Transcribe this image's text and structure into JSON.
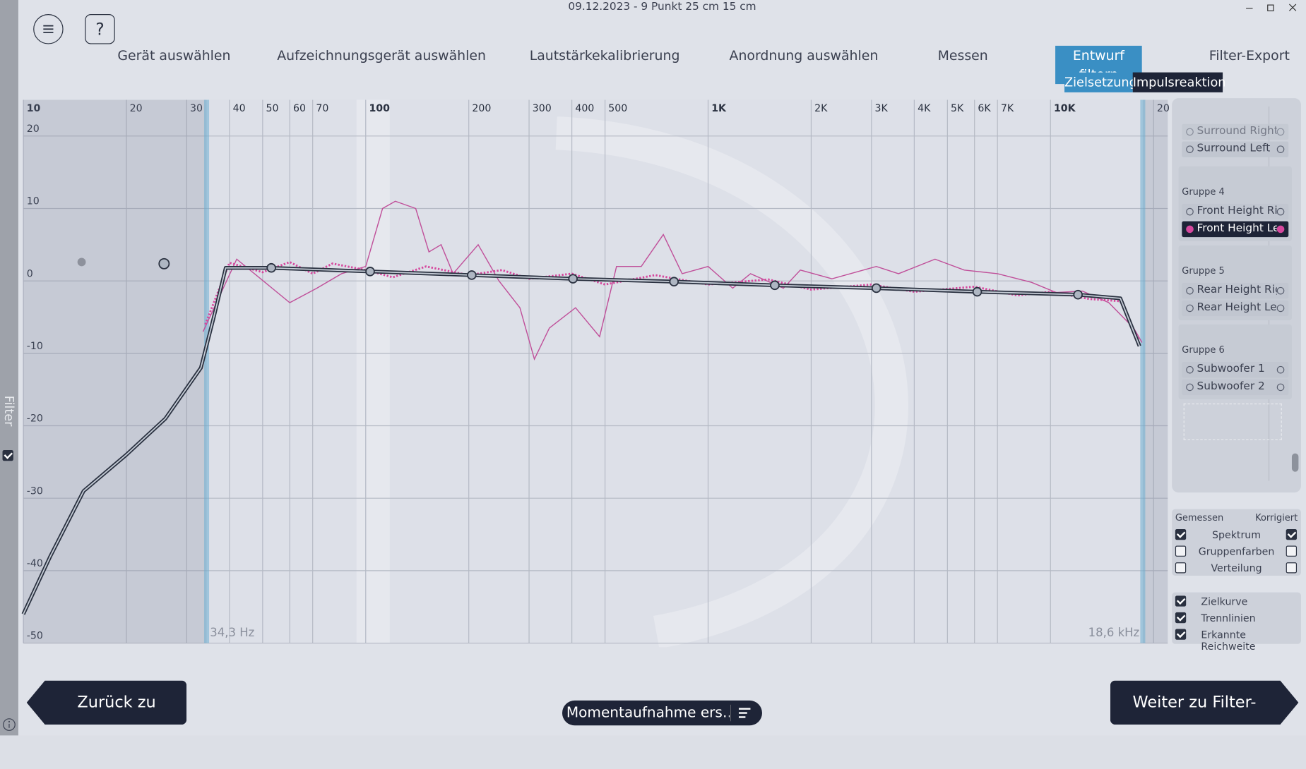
{
  "header": {
    "title": "09.12.2023 - 9 Punkt 25 cm 15 cm",
    "help": "?"
  },
  "steps": {
    "labels": [
      "Gerät auswählen",
      "Aufzeichnungsgerät auswählen",
      "Lautstärkekalibrierung",
      "Anordnung auswählen",
      "Messen",
      "Entwurf filtern",
      "Filter-Export"
    ],
    "active": 5
  },
  "tabs": [
    "Zielsetzung",
    "Impulsreaktion"
  ],
  "side": {
    "label": "Filter",
    "checked": true
  },
  "chart_data": {
    "type": "line",
    "xscale": "log",
    "xlim": [
      10,
      22000
    ],
    "ylim": [
      -50,
      25
    ],
    "grid": true,
    "xticks": [
      10,
      20,
      30,
      40,
      50,
      60,
      70,
      100,
      200,
      300,
      400,
      500,
      {
        "value": 1000,
        "label": "1K"
      },
      {
        "value": 2000,
        "label": "2K"
      },
      {
        "value": 3000,
        "label": "3K"
      },
      {
        "value": 4000,
        "label": "4K"
      },
      {
        "value": 5000,
        "label": "5K"
      },
      {
        "value": 6000,
        "label": "6K"
      },
      {
        "value": 7000,
        "label": "7K"
      },
      {
        "value": 10000,
        "label": "10K"
      },
      {
        "value": 20000,
        "label": "20"
      }
    ],
    "yticks": [
      20,
      10,
      0,
      -10,
      -20,
      -30,
      -40,
      -50
    ],
    "range": [
      {
        "value": 34.3,
        "label": "34,3 Hz"
      },
      {
        "value": 18600,
        "label": "18,6 kHz"
      }
    ],
    "series": [
      {
        "color": "#c0509a",
        "style": "solid",
        "x": [
          33.5,
          42,
          60,
          72,
          85,
          100,
          112,
          122,
          140,
          153,
          166,
          180,
          213,
          245,
          282,
          311,
          344,
          410,
          482,
          540,
          638,
          740,
          840,
          1000,
          1180,
          1330,
          1660,
          1860,
          2300,
          3100,
          3600,
          4600,
          5600,
          7000,
          8800,
          10400,
          12400,
          14800,
          17500,
          18500
        ],
        "values": [
          -7,
          3,
          -3,
          -1,
          1,
          2,
          10,
          11,
          10,
          4,
          5,
          1,
          5,
          0,
          -3.7,
          -10.8,
          -6.5,
          -3.7,
          -7.7,
          2,
          2,
          6.4,
          1,
          2,
          -1,
          1,
          -1,
          1.5,
          0.3,
          2,
          1,
          3,
          1.5,
          1,
          -0.2,
          -1.6,
          -1.4,
          -3,
          -6.5,
          -8.5
        ]
      },
      {
        "color": "#d6489e",
        "style": "dotted",
        "x": [
          34,
          40,
          50,
          60,
          70,
          80,
          100,
          120,
          150,
          200,
          250,
          300,
          400,
          500,
          700,
          1000,
          1500,
          2000,
          3000,
          4000,
          6000,
          8000,
          10000,
          13000,
          16000,
          18000
        ],
        "values": [
          -6,
          2.5,
          1.2,
          2.6,
          1.0,
          2.4,
          1.5,
          0.5,
          2.0,
          0.8,
          1.5,
          0.3,
          1.0,
          -0.5,
          0.8,
          -0.5,
          0.2,
          -1.2,
          -0.5,
          -1.5,
          -0.8,
          -2.0,
          -1.5,
          -2.5,
          -2.8,
          -8
        ]
      },
      {
        "color": "#2a3140",
        "style": "target",
        "x": [
          10,
          12,
          15,
          20,
          26,
          33,
          36,
          39,
          53,
          103,
          204,
          403,
          795,
          1566,
          3100,
          6110,
          12030,
          16000,
          18200
        ],
        "values": [
          -46,
          -38,
          -29,
          -24,
          -19,
          -12,
          -5,
          1.8,
          1.8,
          1.3,
          0.8,
          0.3,
          -0.1,
          -0.6,
          -1,
          -1.5,
          -1.9,
          -2.4,
          -9
        ]
      }
    ],
    "control_points": {
      "color": "#aeb6c2",
      "x": [
        53,
        103,
        204,
        403,
        795,
        1566,
        3100,
        6110,
        12030
      ],
      "values": [
        1.8,
        1.3,
        0.8,
        0.3,
        -0.1,
        -0.6,
        -1,
        -1.5,
        -1.9
      ]
    }
  },
  "sidebar": {
    "top_items": [
      "Surround Right",
      "Surround Left"
    ],
    "groups": [
      {
        "name": "Gruppe 4",
        "items": [
          "Front Height Ri…",
          "Front Height Left"
        ],
        "selected": 1
      },
      {
        "name": "Gruppe 5",
        "items": [
          "Rear Height Right",
          "Rear Height Left"
        ],
        "selected": -1
      },
      {
        "name": "Gruppe 6",
        "items": [
          "Subwoofer 1",
          "Subwoofer 2"
        ],
        "selected": -1
      }
    ]
  },
  "options": {
    "headers": [
      "Gemessen",
      "Korrigiert"
    ],
    "rows": [
      {
        "label": "Spektrum",
        "measured": true,
        "corrected": true
      },
      {
        "label": "Gruppenfarben",
        "measured": false,
        "corrected": false
      },
      {
        "label": "Verteilung",
        "measured": false,
        "corrected": false
      }
    ],
    "display": [
      {
        "label": "Zielkurve",
        "checked": true
      },
      {
        "label": "Trennlinien",
        "checked": true
      },
      {
        "label": "Erkannte Reichweite",
        "checked": true
      }
    ]
  },
  "buttons": {
    "back": "Zurück zu Messen",
    "next": "Weiter zu Filter-Export",
    "snapshot": "Momentaufnahme ers…"
  }
}
